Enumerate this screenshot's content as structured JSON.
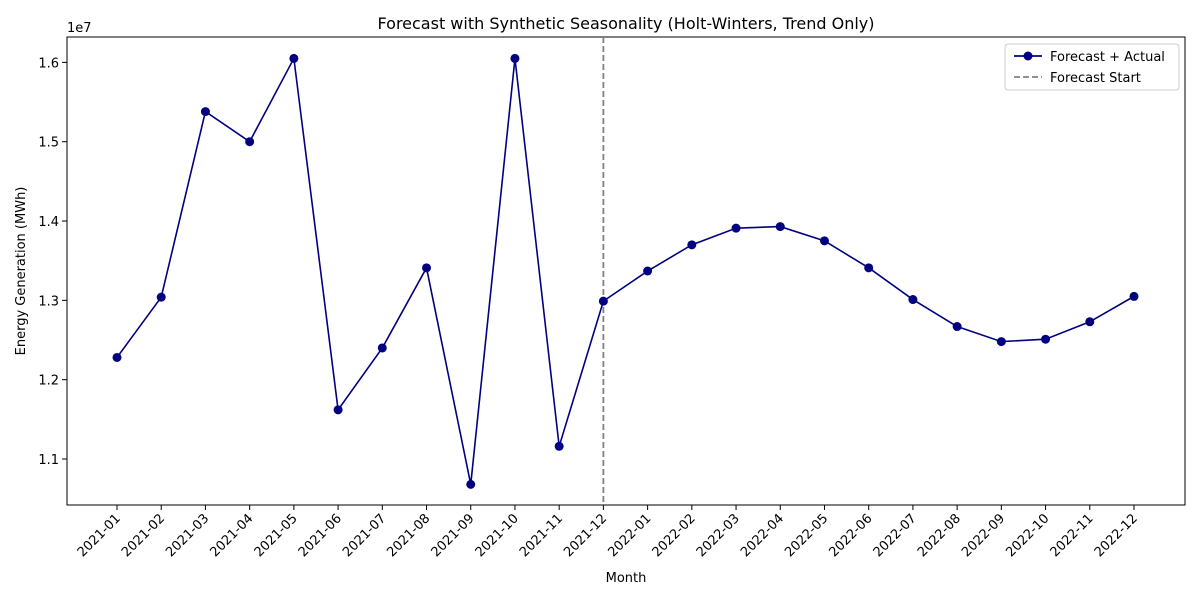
{
  "chart_data": {
    "type": "line",
    "title": "Forecast with Synthetic Seasonality (Holt-Winters, Trend Only)",
    "xlabel": "Month",
    "ylabel": "Energy Generation (MWh)",
    "y_offset_label": "1e7",
    "categories": [
      "2021-01",
      "2021-02",
      "2021-03",
      "2021-04",
      "2021-05",
      "2021-06",
      "2021-07",
      "2021-08",
      "2021-09",
      "2021-10",
      "2021-11",
      "2021-12",
      "2022-01",
      "2022-02",
      "2022-03",
      "2022-04",
      "2022-05",
      "2022-06",
      "2022-07",
      "2022-08",
      "2022-09",
      "2022-10",
      "2022-11",
      "2022-12"
    ],
    "series": [
      {
        "name": "Forecast + Actual",
        "color": "#000080",
        "values": [
          12280000,
          13040000,
          15380000,
          15000000,
          16050000,
          11620000,
          12400000,
          13410000,
          10680000,
          16050000,
          11160000,
          12990000,
          13370000,
          13700000,
          13910000,
          13930000,
          13750000,
          13410000,
          13010000,
          12670000,
          12480000,
          12510000,
          12730000,
          13050000
        ]
      }
    ],
    "vline": {
      "name": "Forecast Start",
      "category": "2021-12",
      "color": "#808080"
    },
    "ylim": [
      10420000,
      16320000
    ],
    "yticks": [
      11000000,
      12000000,
      13000000,
      14000000,
      15000000,
      16000000
    ],
    "ytick_labels": [
      "1.1",
      "1.2",
      "1.3",
      "1.4",
      "1.5",
      "1.6"
    ],
    "grid": false,
    "legend_position": "top-right"
  }
}
